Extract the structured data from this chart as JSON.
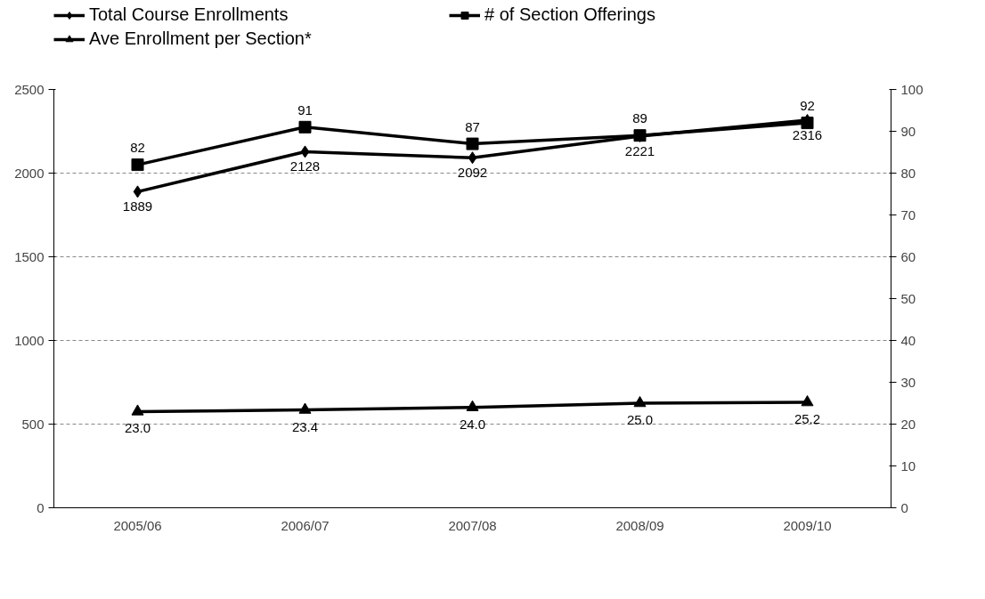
{
  "chart_data": {
    "type": "line",
    "categories": [
      "2005/06",
      "2006/07",
      "2007/08",
      "2008/09",
      "2009/10"
    ],
    "series": [
      {
        "name": "Total Course Enrollments",
        "color": "#000000",
        "marker": "diamond",
        "values": [
          1889,
          2128,
          2092,
          2221,
          2316
        ],
        "value_labels": [
          "1889",
          "2128",
          "2092",
          "2221",
          "2316"
        ]
      },
      {
        "name": "# of Section Offerings",
        "color": "#000000",
        "marker": "square",
        "axis": "y2",
        "values": [
          82,
          91,
          87,
          89,
          92
        ],
        "value_labels": [
          "82",
          "91",
          "87",
          "89",
          "92"
        ]
      },
      {
        "name": "Ave Enrollment per Section*",
        "color": "#000000",
        "marker": "triangle",
        "axis": "y2",
        "values": [
          23.0,
          23.4,
          24.0,
          25.0,
          25.2
        ],
        "value_labels": [
          "23.0",
          "23.4",
          "24.0",
          "25.0",
          "25.2"
        ]
      }
    ],
    "ylim": [
      0,
      2500
    ],
    "yticks": [
      0,
      500,
      1000,
      1500,
      2000,
      2500
    ],
    "y2lim": [
      0,
      100
    ],
    "y2ticks": [
      0,
      10,
      20,
      30,
      40,
      50,
      60,
      70,
      80,
      90,
      100
    ],
    "grid": "y",
    "legend": "top",
    "line_style": "solid"
  }
}
